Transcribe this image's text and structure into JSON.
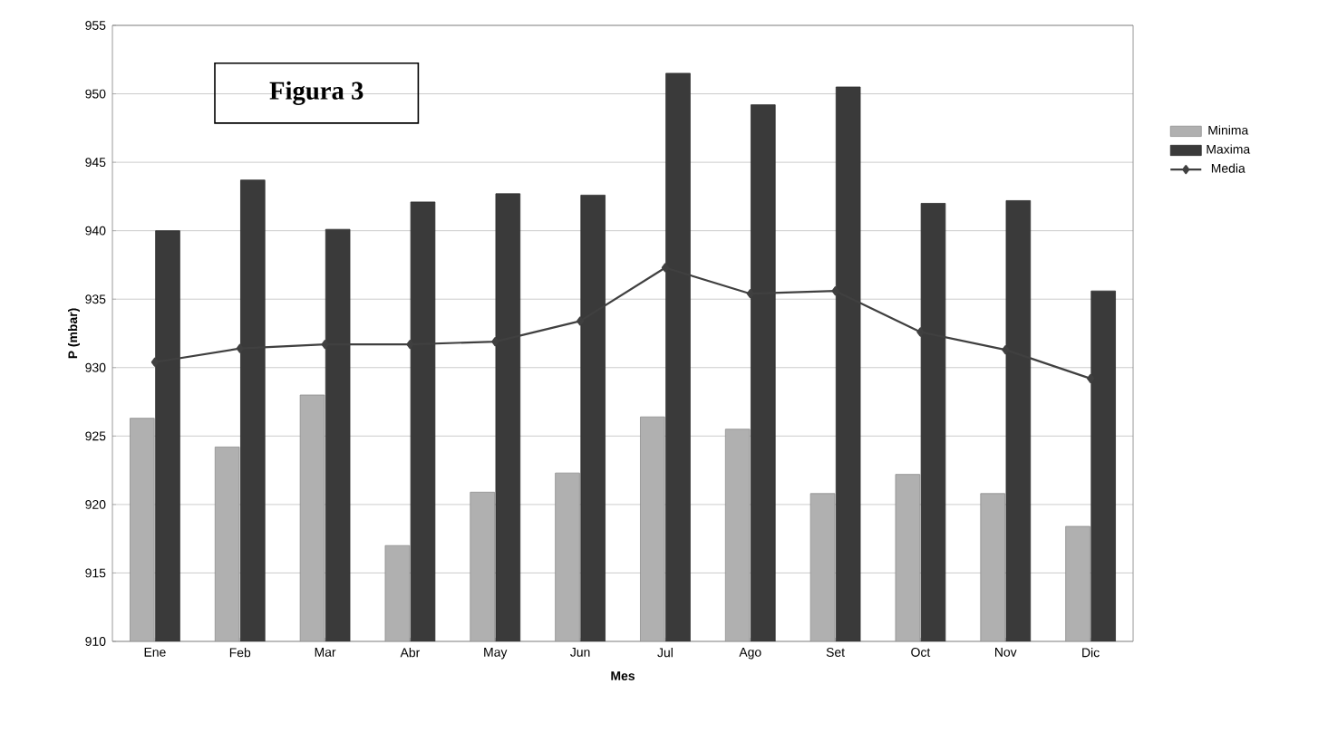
{
  "chart_data": {
    "type": "bar",
    "title": "Figura 3",
    "xlabel": "Mes",
    "ylabel": "P (mbar)",
    "categories": [
      "Ene",
      "Feb",
      "Mar",
      "Abr",
      "May",
      "Jun",
      "Jul",
      "Ago",
      "Set",
      "Oct",
      "Nov",
      "Dic"
    ],
    "series": [
      {
        "name": "Minima",
        "color": "#b0b0b0",
        "values": [
          926.3,
          924.2,
          928,
          917,
          920.9,
          922.3,
          926.4,
          925.5,
          920.8,
          922.2,
          920.8,
          918.4
        ]
      },
      {
        "name": "Maxima",
        "color": "#3a3a3a",
        "values": [
          940,
          943.7,
          940.1,
          942.1,
          942.7,
          942.6,
          951.5,
          949.2,
          950.5,
          942,
          942.2,
          935.6
        ]
      },
      {
        "name": "Media",
        "type": "line",
        "color": "#404040",
        "marker": "diamond",
        "values": [
          930.4,
          931.4,
          931.7,
          931.7,
          931.9,
          933.4,
          937.3,
          935.4,
          935.6,
          932.6,
          931.3,
          929.2
        ]
      }
    ],
    "ylim": [
      910,
      955
    ],
    "yticks": [
      910,
      915,
      920,
      925,
      930,
      935,
      940,
      945,
      950,
      955
    ],
    "grid": "y",
    "legend": "right"
  }
}
